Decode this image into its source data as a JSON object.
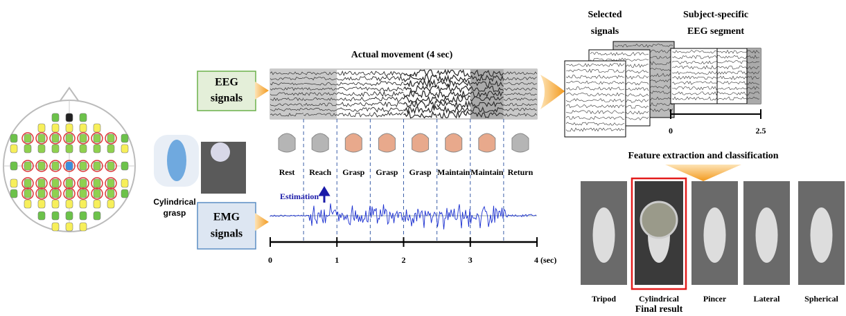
{
  "title": "Actual movement (4 sec)",
  "eeg_label": [
    "EEG",
    "signals"
  ],
  "emg_label": [
    "EMG",
    "signals"
  ],
  "subject_label": [
    "Cylindrical",
    "grasp"
  ],
  "phases": [
    "Rest",
    "Reach",
    "Grasp",
    "Grasp",
    "Grasp",
    "Maintain",
    "Maintain",
    "Return"
  ],
  "estimation": "Estimation",
  "timeline_ticks": [
    0,
    1,
    2,
    3,
    "4 (sec)"
  ],
  "selected_signals": [
    "Selected",
    "signals"
  ],
  "segment_title": [
    "Subject-specific",
    "EEG segment"
  ],
  "segment_ticks": [
    0,
    2.5
  ],
  "feature_title": "Feature extraction and classification",
  "grasps": [
    "Tripod",
    "Cylindrical",
    "Pincer",
    "Lateral",
    "Spherical"
  ],
  "final_result": "Final result"
}
